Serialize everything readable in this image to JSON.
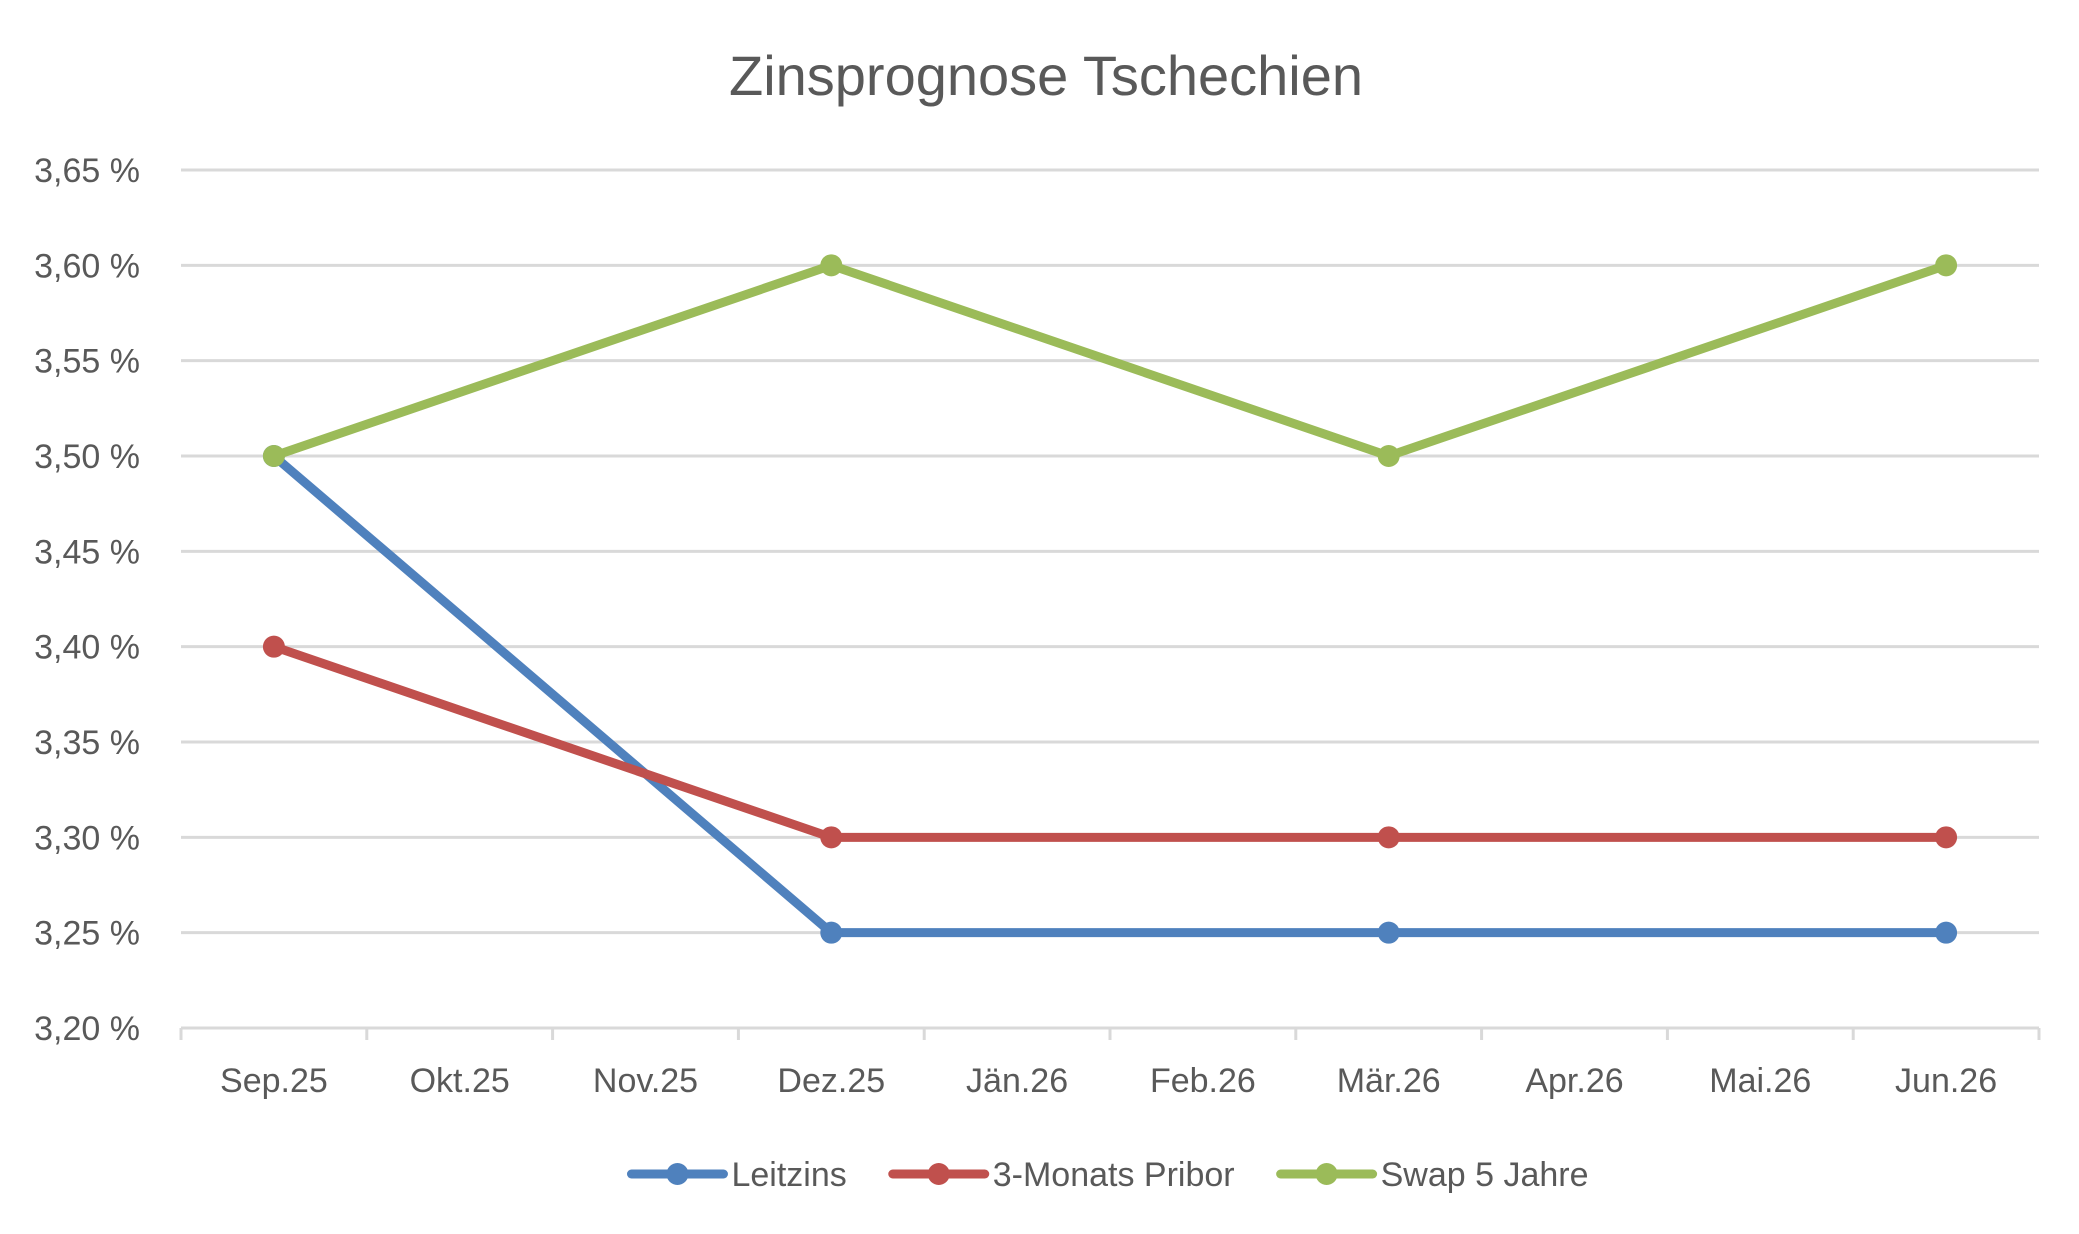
{
  "chart_data": {
    "type": "line",
    "title": "Zinsprognose Tschechien",
    "categories": [
      "Sep.25",
      "Okt.25",
      "Nov.25",
      "Dez.25",
      "Jän.26",
      "Feb.26",
      "Mär.26",
      "Apr.26",
      "Mai.26",
      "Jun.26"
    ],
    "ytick_labels": [
      "3,20 %",
      "3,25 %",
      "3,30 %",
      "3,35 %",
      "3,40 %",
      "3,45 %",
      "3,50 %",
      "3,55 %",
      "3,60 %",
      "3,65 %"
    ],
    "ylim": [
      3.2,
      3.65
    ],
    "ystep": 0.05,
    "grid": true,
    "legend_position": "bottom",
    "series": [
      {
        "name": "Leitzins",
        "color": "#4f81bd",
        "points": [
          [
            "Sep.25",
            3.5
          ],
          [
            "Dez.25",
            3.25
          ],
          [
            "Mär.26",
            3.25
          ],
          [
            "Jun.26",
            3.25
          ]
        ]
      },
      {
        "name": "3-Monats Pribor",
        "color": "#c0504d",
        "points": [
          [
            "Sep.25",
            3.4
          ],
          [
            "Dez.25",
            3.3
          ],
          [
            "Mär.26",
            3.3
          ],
          [
            "Jun.26",
            3.3
          ]
        ]
      },
      {
        "name": "Swap 5 Jahre",
        "color": "#9bbb59",
        "points": [
          [
            "Sep.25",
            3.5
          ],
          [
            "Dez.25",
            3.6
          ],
          [
            "Mär.26",
            3.5
          ],
          [
            "Jun.26",
            3.6
          ]
        ]
      }
    ]
  }
}
